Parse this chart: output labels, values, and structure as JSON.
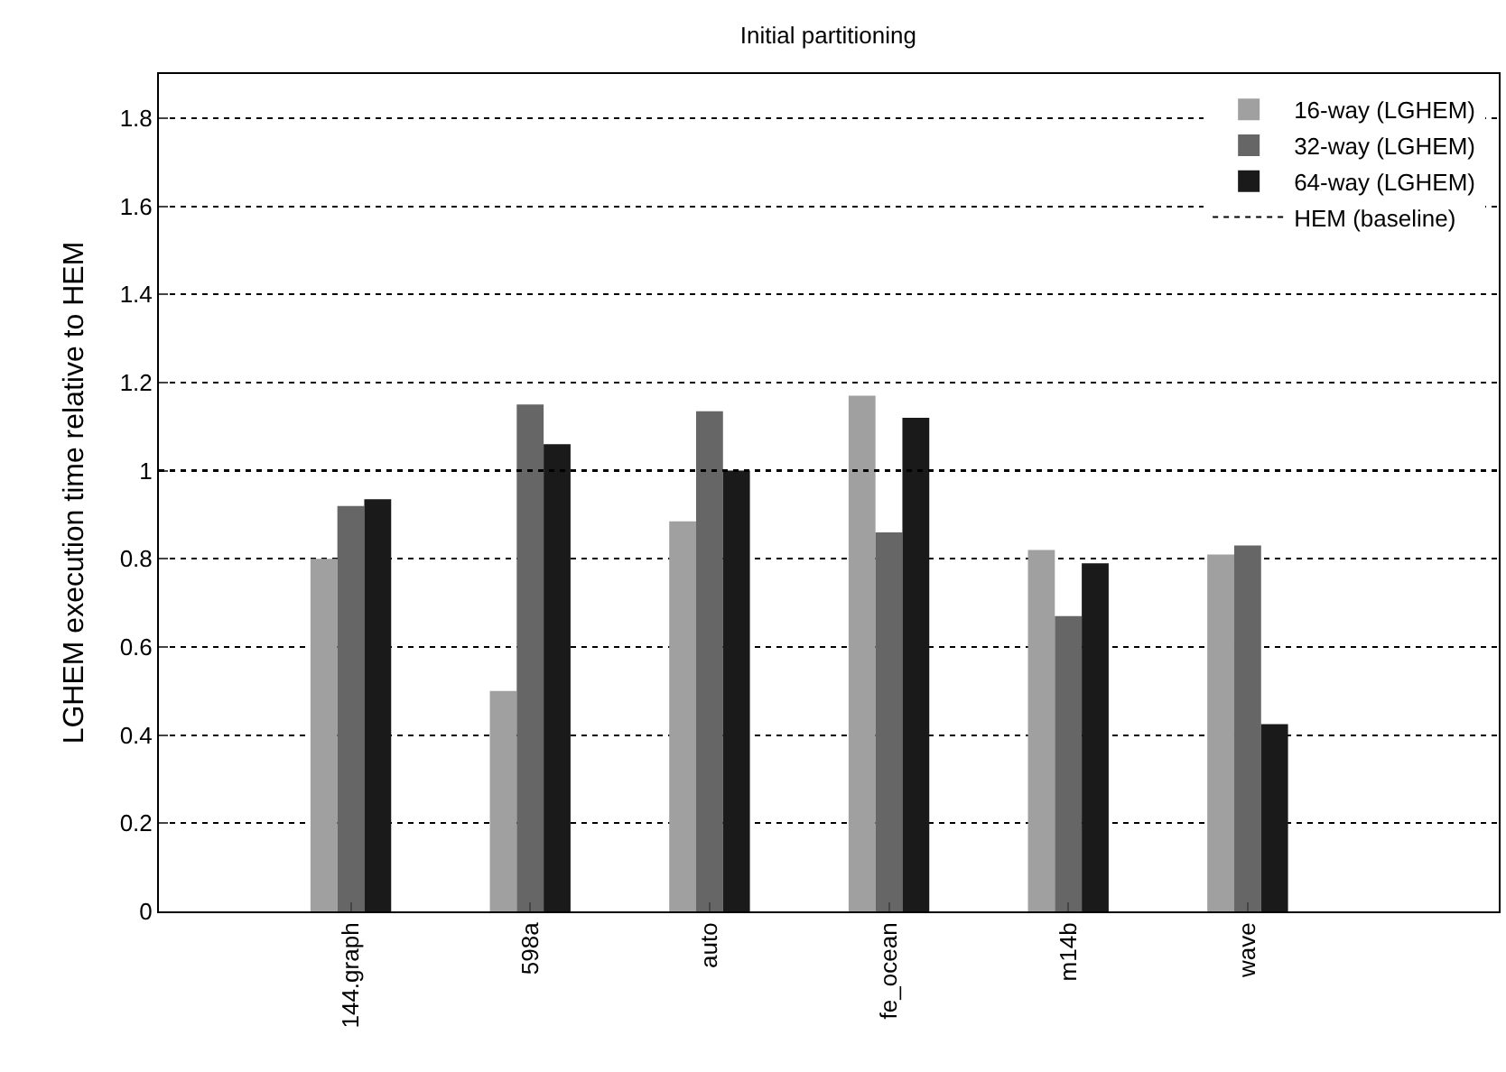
{
  "chart_data": {
    "type": "bar",
    "title": "Initial partitioning",
    "ylabel": "LGHEM execution time relative to HEM",
    "categories": [
      "144.graph",
      "598a",
      "auto",
      "fe_ocean",
      "m14b",
      "wave"
    ],
    "series": [
      {
        "name": "16-way (LGHEM)",
        "color": "#a0a0a0",
        "values": [
          0.8,
          0.5,
          0.885,
          1.17,
          0.82,
          0.81
        ]
      },
      {
        "name": "32-way (LGHEM)",
        "color": "#666666",
        "values": [
          0.92,
          1.15,
          1.135,
          0.86,
          0.67,
          0.83
        ]
      },
      {
        "name": "64-way (LGHEM)",
        "color": "#1a1a1a",
        "values": [
          0.935,
          1.06,
          1.0,
          1.12,
          0.79,
          0.425
        ]
      }
    ],
    "ref_lines": [
      {
        "axis": "y",
        "value": 1,
        "label": "HEM (baseline)",
        "color": "#000000",
        "line_style": "dotted"
      }
    ],
    "ylim": [
      0,
      1.9
    ],
    "yticks": [
      0,
      0.2,
      0.4,
      0.6,
      0.8,
      1,
      1.2,
      1.4,
      1.6,
      1.8
    ],
    "grid": "y",
    "legend": "top right"
  }
}
